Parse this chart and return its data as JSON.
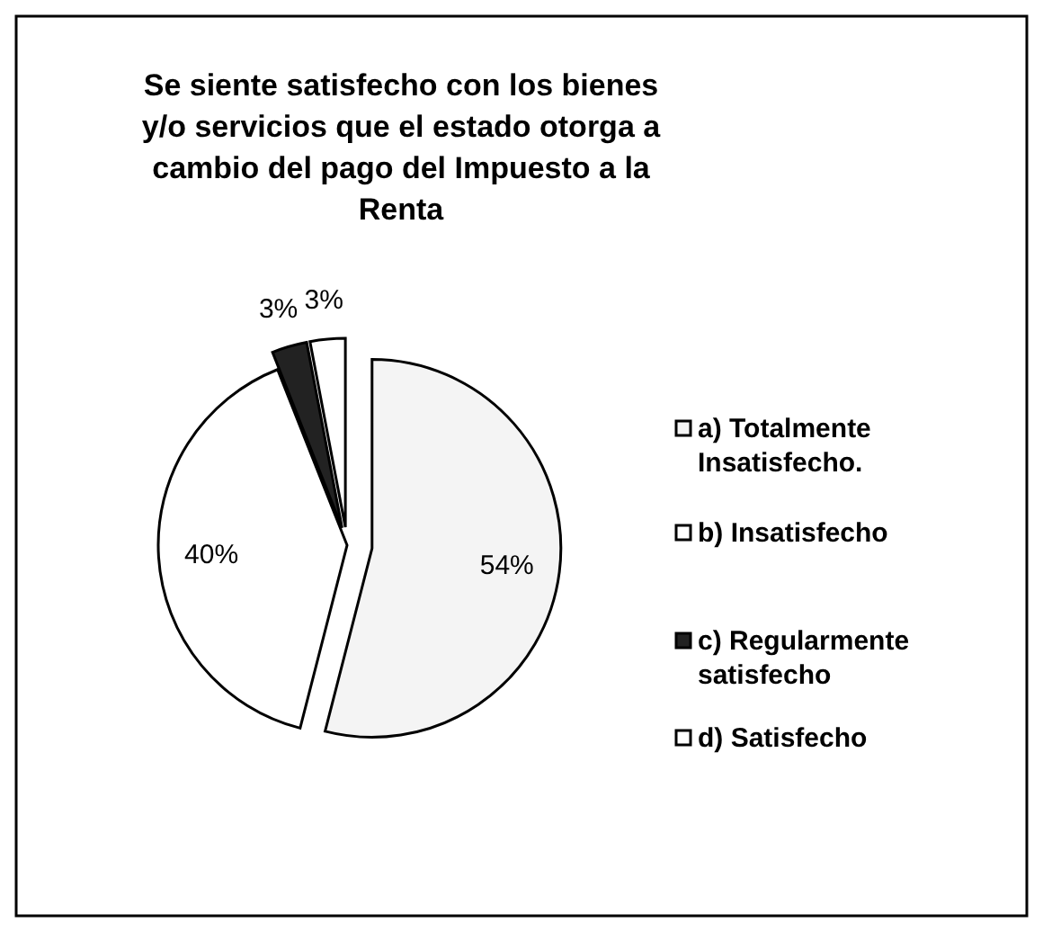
{
  "chart_data": {
    "type": "pie",
    "title": "Se siente satisfecho con los bienes y/o servicios que el estado otorga a cambio del pago del Impuesto a la Renta",
    "categories": [
      "a) Totalmente Insatisfecho.",
      "b) Insatisfecho",
      "c) Regularmente satisfecho",
      "d) Satisfecho"
    ],
    "values": [
      54,
      40,
      3,
      3
    ],
    "colors": [
      "#f4f4f4",
      "#ffffff",
      "#222222",
      "#ffffff"
    ],
    "value_labels": [
      "54%",
      "40%",
      "3%",
      "3%"
    ],
    "legend": "right"
  }
}
